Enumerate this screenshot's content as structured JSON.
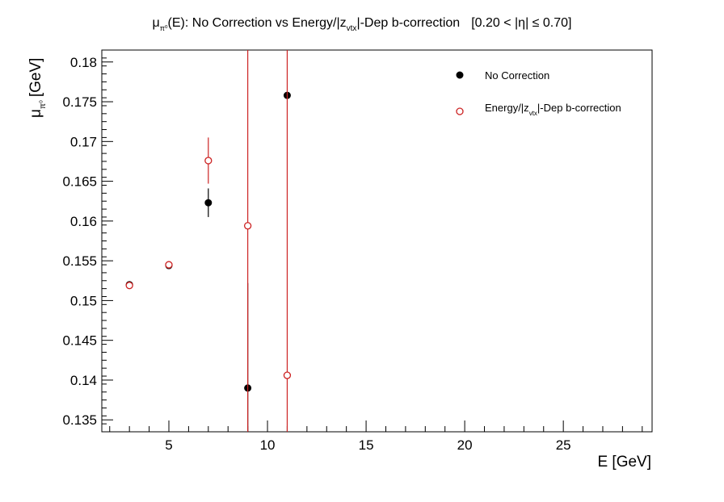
{
  "chart_data": {
    "type": "scatter",
    "title": {
      "mu": "μ",
      "pi_sub": "π⁰",
      "rest": "(E): No Correction vs Energy/|z",
      "vtx_sub": "vtx",
      "rest2": "|-Dep b-correction",
      "range": "[0.20 < |η| ≤ 0.70]"
    },
    "xlabel": "E [GeV]",
    "ylabel": {
      "mu": "μ",
      "pi_sub": "π⁰",
      "unit": "[GeV]"
    },
    "xlim": [
      1.6,
      29.5
    ],
    "ylim": [
      0.1335,
      0.1815
    ],
    "x_ticks": [
      5,
      10,
      15,
      20,
      25
    ],
    "x_tick_labels": [
      "5",
      "10",
      "15",
      "20",
      "25"
    ],
    "y_ticks": [
      0.135,
      0.14,
      0.145,
      0.15,
      0.155,
      0.16,
      0.165,
      0.17,
      0.175,
      0.18
    ],
    "y_tick_labels": [
      "0.135",
      "0.14",
      "0.145",
      "0.15",
      "0.155",
      "0.16",
      "0.165",
      "0.17",
      "0.175",
      "0.18"
    ],
    "grid": false,
    "legend_position": "top-right",
    "series": [
      {
        "name": "No Correction",
        "marker": "filled-circle",
        "color": "#000000",
        "points": [
          {
            "x": 3,
            "y": 0.152,
            "err": 0.0002
          },
          {
            "x": 5,
            "y": 0.1544,
            "err": 0.0002
          },
          {
            "x": 7,
            "y": 0.1623,
            "err": 0.0018
          },
          {
            "x": 9,
            "y": 0.139,
            "err": 0.0132
          },
          {
            "x": 11,
            "y": 0.1758,
            "err": 0.0003
          }
        ]
      },
      {
        "name": "Energy/|z_vtx|-Dep b-correction",
        "legend_label": {
          "pre": "Energy/|z",
          "sub": "vtx",
          "post": "|-Dep b-correction"
        },
        "marker": "open-circle",
        "color": "#cc2222",
        "points": [
          {
            "x": 3,
            "y": 0.1519,
            "err": 0.0002
          },
          {
            "x": 5,
            "y": 0.1545,
            "err": 0.0002
          },
          {
            "x": 7,
            "y": 0.1676,
            "err": 0.0029
          },
          {
            "x": 9,
            "y": 0.1594,
            "err": 0.5
          },
          {
            "x": 11,
            "y": 0.1406,
            "err": 0.5
          }
        ]
      }
    ]
  }
}
